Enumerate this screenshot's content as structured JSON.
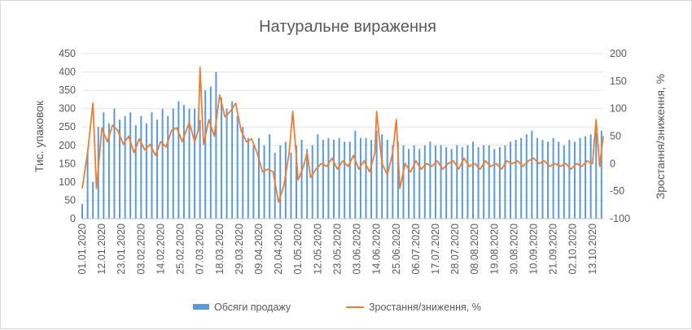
{
  "chart_data": {
    "type": "bar+line",
    "title": "Натуральне вираження",
    "ylabel_left": "Тис. упаковок",
    "ylabel_right": "Зростання/зниження, %",
    "y_left_ticks": [
      "0",
      "50",
      "100",
      "150",
      "200",
      "250",
      "300",
      "350",
      "400",
      "450"
    ],
    "y_right_ticks": [
      "-100",
      "-50",
      "0",
      "50",
      "100",
      "150",
      "200"
    ],
    "ylim_left": [
      0,
      450
    ],
    "ylim_right": [
      -100,
      200
    ],
    "x_start": "2020-01-01",
    "x_end": "2020-10-19",
    "x_tick_labels": [
      "01.01.2020",
      "12.01.2020",
      "23.01.2020",
      "03.02.2020",
      "14.02.2020",
      "25.02.2020",
      "07.03.2020",
      "18.03.2020",
      "29.03.2020",
      "09.04.2020",
      "20.04.2020",
      "01.05.2020",
      "12.05.2020",
      "23.05.2020",
      "03.06.2020",
      "14.06.2020",
      "25.06.2020",
      "06.07.2020",
      "17.07.2020",
      "28.07.2020",
      "08.08.2020",
      "19.08.2020",
      "30.08.2020",
      "10.09.2020",
      "21.09.2020",
      "02.10.2020",
      "13.10.2020"
    ],
    "series": [
      {
        "name": "Обсяги продажу",
        "kind": "bar",
        "color": "#5b9bd5",
        "points": [
          [
            "2020-01-01",
            40
          ],
          [
            "2020-01-04",
            180
          ],
          [
            "2020-01-07",
            100
          ],
          [
            "2020-01-10",
            250
          ],
          [
            "2020-01-13",
            290
          ],
          [
            "2020-01-16",
            260
          ],
          [
            "2020-01-19",
            300
          ],
          [
            "2020-01-22",
            270
          ],
          [
            "2020-01-25",
            280
          ],
          [
            "2020-01-28",
            290
          ],
          [
            "2020-01-31",
            255
          ],
          [
            "2020-02-03",
            280
          ],
          [
            "2020-02-06",
            260
          ],
          [
            "2020-02-09",
            290
          ],
          [
            "2020-02-12",
            270
          ],
          [
            "2020-02-15",
            300
          ],
          [
            "2020-02-18",
            280
          ],
          [
            "2020-02-21",
            300
          ],
          [
            "2020-02-24",
            320
          ],
          [
            "2020-02-27",
            310
          ],
          [
            "2020-03-01",
            300
          ],
          [
            "2020-03-04",
            300
          ],
          [
            "2020-03-07",
            270
          ],
          [
            "2020-03-10",
            350
          ],
          [
            "2020-03-13",
            360
          ],
          [
            "2020-03-16",
            400
          ],
          [
            "2020-03-19",
            330
          ],
          [
            "2020-03-22",
            300
          ],
          [
            "2020-03-25",
            320
          ],
          [
            "2020-03-28",
            280
          ],
          [
            "2020-03-31",
            250
          ],
          [
            "2020-04-03",
            220
          ],
          [
            "2020-04-06",
            200
          ],
          [
            "2020-04-09",
            220
          ],
          [
            "2020-04-12",
            200
          ],
          [
            "2020-04-15",
            230
          ],
          [
            "2020-04-18",
            180
          ],
          [
            "2020-04-21",
            200
          ],
          [
            "2020-04-24",
            210
          ],
          [
            "2020-04-27",
            180
          ],
          [
            "2020-04-30",
            200
          ],
          [
            "2020-05-03",
            215
          ],
          [
            "2020-05-06",
            190
          ],
          [
            "2020-05-09",
            200
          ],
          [
            "2020-05-12",
            230
          ],
          [
            "2020-05-15",
            215
          ],
          [
            "2020-05-18",
            220
          ],
          [
            "2020-05-21",
            215
          ],
          [
            "2020-05-24",
            220
          ],
          [
            "2020-05-27",
            210
          ],
          [
            "2020-05-30",
            210
          ],
          [
            "2020-06-02",
            240
          ],
          [
            "2020-06-05",
            220
          ],
          [
            "2020-06-08",
            220
          ],
          [
            "2020-06-11",
            215
          ],
          [
            "2020-06-14",
            240
          ],
          [
            "2020-06-17",
            230
          ],
          [
            "2020-06-20",
            215
          ],
          [
            "2020-06-23",
            200
          ],
          [
            "2020-06-26",
            210
          ],
          [
            "2020-06-29",
            200
          ],
          [
            "2020-07-02",
            190
          ],
          [
            "2020-07-05",
            200
          ],
          [
            "2020-07-08",
            190
          ],
          [
            "2020-07-11",
            200
          ],
          [
            "2020-07-14",
            210
          ],
          [
            "2020-07-17",
            200
          ],
          [
            "2020-07-20",
            200
          ],
          [
            "2020-07-23",
            195
          ],
          [
            "2020-07-26",
            190
          ],
          [
            "2020-07-29",
            200
          ],
          [
            "2020-08-01",
            195
          ],
          [
            "2020-08-04",
            200
          ],
          [
            "2020-08-07",
            210
          ],
          [
            "2020-08-10",
            195
          ],
          [
            "2020-08-13",
            200
          ],
          [
            "2020-08-16",
            200
          ],
          [
            "2020-08-19",
            190
          ],
          [
            "2020-08-22",
            195
          ],
          [
            "2020-08-25",
            200
          ],
          [
            "2020-08-28",
            210
          ],
          [
            "2020-08-31",
            215
          ],
          [
            "2020-09-03",
            220
          ],
          [
            "2020-09-06",
            230
          ],
          [
            "2020-09-09",
            240
          ],
          [
            "2020-09-12",
            220
          ],
          [
            "2020-09-15",
            215
          ],
          [
            "2020-09-18",
            210
          ],
          [
            "2020-09-21",
            220
          ],
          [
            "2020-09-24",
            210
          ],
          [
            "2020-09-27",
            200
          ],
          [
            "2020-09-30",
            215
          ],
          [
            "2020-10-03",
            210
          ],
          [
            "2020-10-06",
            220
          ],
          [
            "2020-10-09",
            225
          ],
          [
            "2020-10-12",
            230
          ],
          [
            "2020-10-15",
            235
          ],
          [
            "2020-10-18",
            240
          ]
        ]
      },
      {
        "name": "Зростання/зниження, %",
        "kind": "line",
        "axis": "right",
        "color": "#ed7d31",
        "points": [
          [
            "2020-01-01",
            -45
          ],
          [
            "2020-01-04",
            20
          ],
          [
            "2020-01-07",
            110
          ],
          [
            "2020-01-09",
            -45
          ],
          [
            "2020-01-12",
            65
          ],
          [
            "2020-01-15",
            40
          ],
          [
            "2020-01-18",
            70
          ],
          [
            "2020-01-21",
            60
          ],
          [
            "2020-01-24",
            35
          ],
          [
            "2020-01-27",
            50
          ],
          [
            "2020-01-30",
            20
          ],
          [
            "2020-02-02",
            45
          ],
          [
            "2020-02-05",
            25
          ],
          [
            "2020-02-08",
            35
          ],
          [
            "2020-02-11",
            15
          ],
          [
            "2020-02-14",
            40
          ],
          [
            "2020-02-17",
            30
          ],
          [
            "2020-02-20",
            60
          ],
          [
            "2020-02-23",
            65
          ],
          [
            "2020-02-26",
            40
          ],
          [
            "2020-03-01",
            75
          ],
          [
            "2020-03-04",
            40
          ],
          [
            "2020-03-06",
            60
          ],
          [
            "2020-03-07",
            175
          ],
          [
            "2020-03-09",
            35
          ],
          [
            "2020-03-12",
            80
          ],
          [
            "2020-03-15",
            50
          ],
          [
            "2020-03-18",
            125
          ],
          [
            "2020-03-21",
            85
          ],
          [
            "2020-03-24",
            95
          ],
          [
            "2020-03-27",
            110
          ],
          [
            "2020-03-30",
            60
          ],
          [
            "2020-04-02",
            40
          ],
          [
            "2020-04-05",
            45
          ],
          [
            "2020-04-08",
            20
          ],
          [
            "2020-04-11",
            -15
          ],
          [
            "2020-04-14",
            -10
          ],
          [
            "2020-04-17",
            -15
          ],
          [
            "2020-04-20",
            -70
          ],
          [
            "2020-04-23",
            -40
          ],
          [
            "2020-04-26",
            20
          ],
          [
            "2020-04-28",
            95
          ],
          [
            "2020-05-01",
            -30
          ],
          [
            "2020-05-04",
            -5
          ],
          [
            "2020-05-06",
            20
          ],
          [
            "2020-05-08",
            -25
          ],
          [
            "2020-05-11",
            -10
          ],
          [
            "2020-05-14",
            0
          ],
          [
            "2020-05-17",
            -5
          ],
          [
            "2020-05-20",
            10
          ],
          [
            "2020-05-23",
            -10
          ],
          [
            "2020-05-26",
            5
          ],
          [
            "2020-05-29",
            -5
          ],
          [
            "2020-06-01",
            15
          ],
          [
            "2020-06-04",
            -10
          ],
          [
            "2020-06-07",
            5
          ],
          [
            "2020-06-10",
            -15
          ],
          [
            "2020-06-13",
            20
          ],
          [
            "2020-06-14",
            95
          ],
          [
            "2020-06-17",
            0
          ],
          [
            "2020-06-20",
            -20
          ],
          [
            "2020-06-23",
            20
          ],
          [
            "2020-06-25",
            80
          ],
          [
            "2020-06-27",
            -45
          ],
          [
            "2020-06-30",
            0
          ],
          [
            "2020-07-03",
            -15
          ],
          [
            "2020-07-06",
            5
          ],
          [
            "2020-07-09",
            -10
          ],
          [
            "2020-07-12",
            0
          ],
          [
            "2020-07-15",
            -5
          ],
          [
            "2020-07-18",
            5
          ],
          [
            "2020-07-21",
            -10
          ],
          [
            "2020-07-24",
            0
          ],
          [
            "2020-07-27",
            5
          ],
          [
            "2020-07-30",
            -10
          ],
          [
            "2020-08-02",
            10
          ],
          [
            "2020-08-05",
            -5
          ],
          [
            "2020-08-08",
            0
          ],
          [
            "2020-08-11",
            -10
          ],
          [
            "2020-08-14",
            5
          ],
          [
            "2020-08-17",
            -5
          ],
          [
            "2020-08-20",
            0
          ],
          [
            "2020-08-23",
            -10
          ],
          [
            "2020-08-26",
            5
          ],
          [
            "2020-08-29",
            0
          ],
          [
            "2020-09-01",
            5
          ],
          [
            "2020-09-04",
            -5
          ],
          [
            "2020-09-07",
            5
          ],
          [
            "2020-09-10",
            10
          ],
          [
            "2020-09-13",
            0
          ],
          [
            "2020-09-16",
            5
          ],
          [
            "2020-09-19",
            -5
          ],
          [
            "2020-09-22",
            0
          ],
          [
            "2020-09-25",
            -5
          ],
          [
            "2020-09-28",
            0
          ],
          [
            "2020-10-01",
            -10
          ],
          [
            "2020-10-04",
            0
          ],
          [
            "2020-10-07",
            -5
          ],
          [
            "2020-10-10",
            5
          ],
          [
            "2020-10-13",
            0
          ],
          [
            "2020-10-15",
            80
          ],
          [
            "2020-10-17",
            -5
          ],
          [
            "2020-10-19",
            50
          ]
        ]
      }
    ],
    "legend": {
      "position": "bottom"
    }
  }
}
